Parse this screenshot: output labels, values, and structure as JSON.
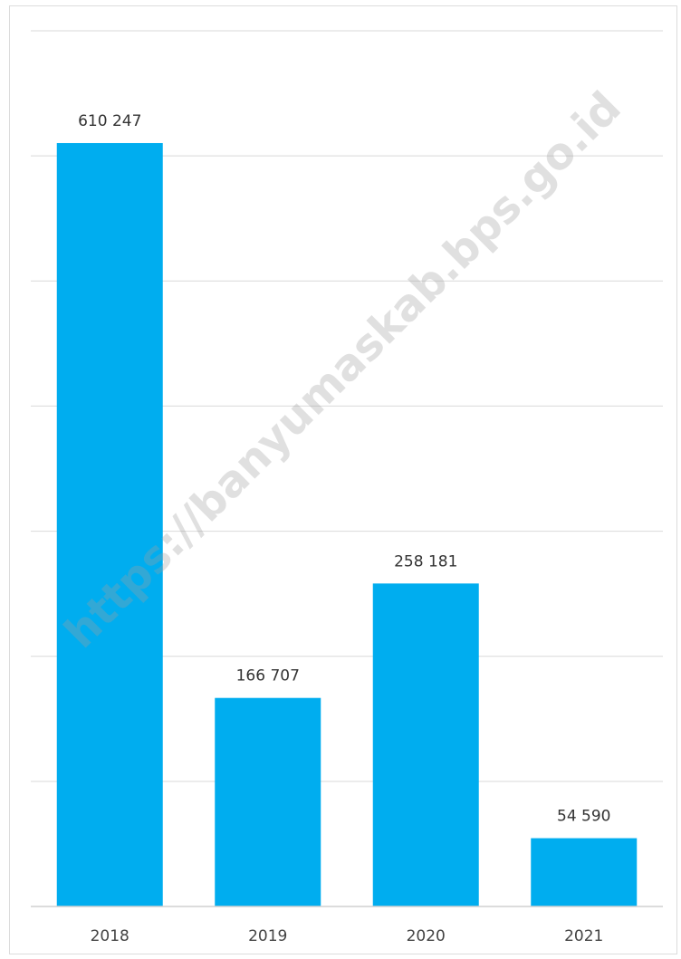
{
  "chart_data": {
    "type": "bar",
    "categories": [
      "2018",
      "2019",
      "2020",
      "2021"
    ],
    "values": [
      610247,
      166707,
      258181,
      54590
    ],
    "value_labels": [
      "610 247",
      "166 707",
      "258 181",
      "54 590"
    ],
    "title": "",
    "xlabel": "",
    "ylabel": "",
    "ylim": [
      0,
      700000
    ],
    "grid": true,
    "bar_color": "#00adef"
  },
  "watermark": "https://banyumaskab.bps.go.id"
}
